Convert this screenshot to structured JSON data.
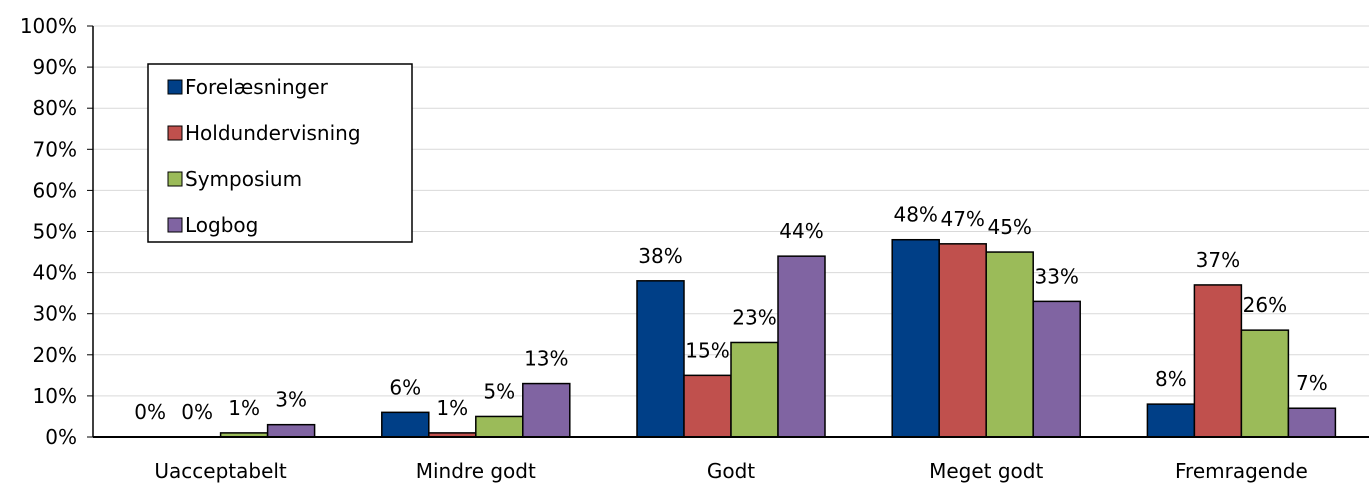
{
  "chart_data": {
    "type": "bar",
    "categories": [
      "Uacceptabelt",
      "Mindre godt",
      "Godt",
      "Meget godt",
      "Fremragende"
    ],
    "series": [
      {
        "name": "Forelæsninger",
        "values": [
          0,
          6,
          38,
          48,
          8
        ],
        "labels": [
          "0%",
          "6%",
          "38%",
          "48%",
          "8%"
        ],
        "color": "#003f87"
      },
      {
        "name": "Holdundervisning",
        "values": [
          0,
          1,
          15,
          47,
          37
        ],
        "labels": [
          "0%",
          "1%",
          "15%",
          "47%",
          "37%"
        ],
        "color": "#c0504d"
      },
      {
        "name": "Symposium",
        "values": [
          1,
          5,
          23,
          45,
          26
        ],
        "labels": [
          "1%",
          "5%",
          "23%",
          "45%",
          "26%"
        ],
        "color": "#9bbb59"
      },
      {
        "name": "Logbog",
        "values": [
          3,
          13,
          44,
          33,
          7
        ],
        "labels": [
          "3%",
          "13%",
          "44%",
          "33%",
          "7%"
        ],
        "color": "#8064a2"
      }
    ],
    "ylim": [
      0,
      100
    ],
    "yticks": [
      "0%",
      "10%",
      "20%",
      "30%",
      "40%",
      "50%",
      "60%",
      "70%",
      "80%",
      "90%",
      "100%"
    ],
    "grid": true,
    "legend_placement": "top-left"
  }
}
